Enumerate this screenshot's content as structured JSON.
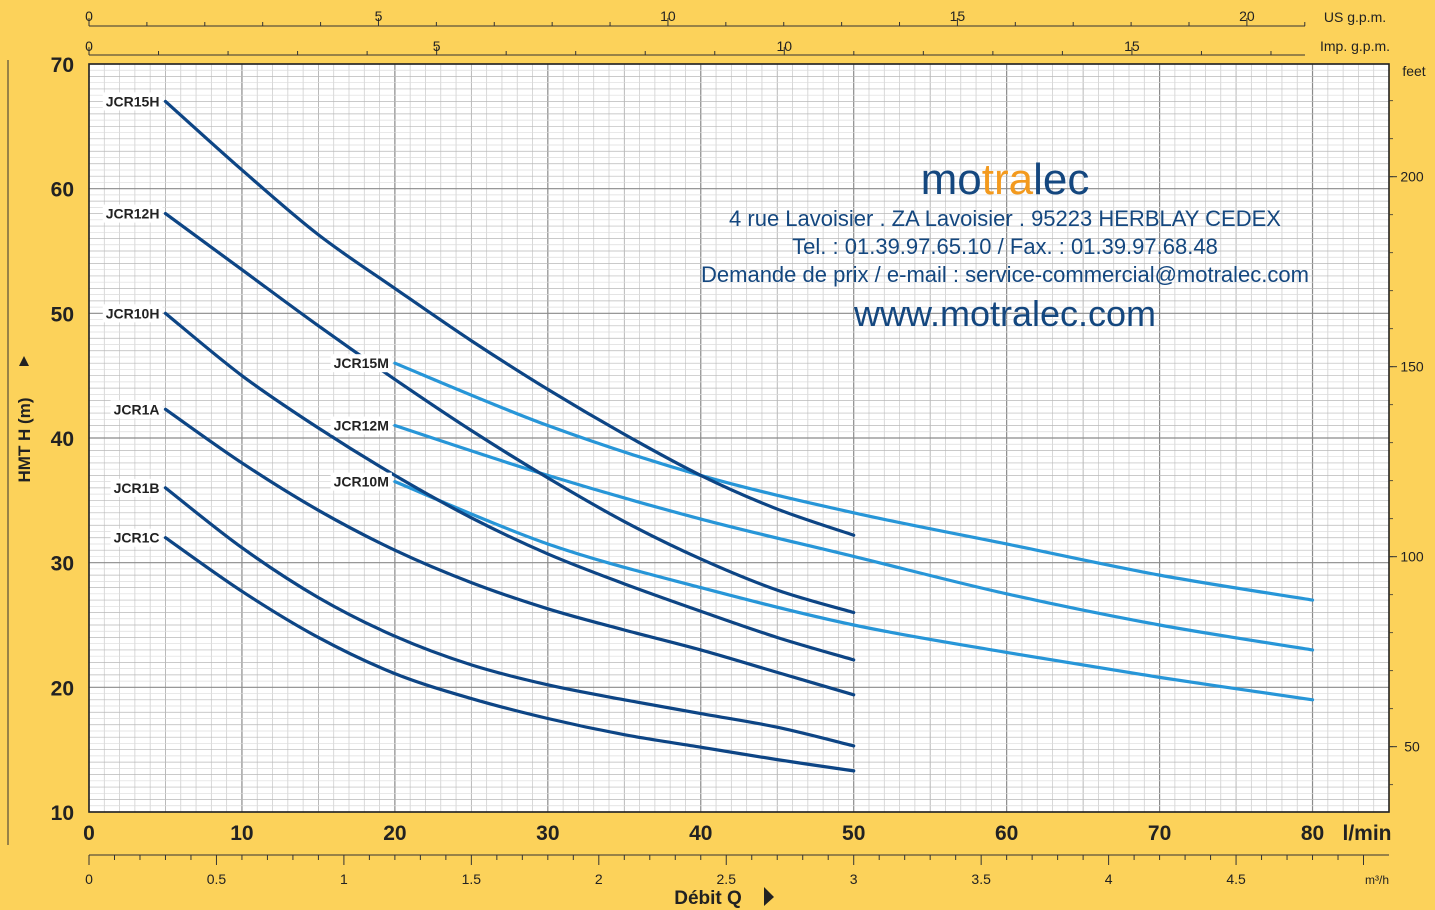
{
  "chart_data": {
    "type": "line",
    "ylabel": "HMT  H  (m)",
    "xlabel": "Débit  Q",
    "x_unit_main": "l/min",
    "ylim": [
      10,
      70
    ],
    "xlim": [
      0,
      85
    ],
    "y_ticks": [
      "70",
      "60",
      "50",
      "40",
      "30",
      "20",
      "10"
    ],
    "x_ticks_lmin": [
      "0",
      "10",
      "20",
      "30",
      "40",
      "50",
      "60",
      "70",
      "80"
    ],
    "x_ticks_m3h": [
      "0",
      "0.5",
      "1",
      "1.5",
      "2",
      "2.5",
      "3",
      "3.5",
      "4",
      "4.5"
    ],
    "x_unit_m3h": "m³/h",
    "x_ticks_usgpm": [
      "0",
      "5",
      "10",
      "15",
      "20"
    ],
    "x_unit_usgpm": "US g.p.m.",
    "x_ticks_impgpm": [
      "0",
      "5",
      "10",
      "15"
    ],
    "x_unit_impgpm": "Imp. g.p.m.",
    "y_ticks_feet": [
      "200",
      "150",
      "100",
      "50"
    ],
    "y_unit_feet": "feet",
    "series": [
      {
        "name": "JCR15H",
        "color": "#0d4585",
        "x": [
          5,
          10,
          15,
          20,
          25,
          30,
          35,
          40,
          45,
          50
        ],
        "y": [
          67,
          61.5,
          56.3,
          52,
          47.8,
          43.9,
          40.3,
          37,
          34.3,
          32.2
        ]
      },
      {
        "name": "JCR12H",
        "color": "#0d4585",
        "x": [
          5,
          10,
          15,
          20,
          25,
          30,
          35,
          40,
          45,
          50
        ],
        "y": [
          58,
          53.5,
          49,
          44.7,
          40.6,
          36.8,
          33.3,
          30.3,
          27.8,
          26
        ]
      },
      {
        "name": "JCR10H",
        "color": "#0d4585",
        "x": [
          5,
          10,
          15,
          20,
          25,
          30,
          35,
          40,
          45,
          50
        ],
        "y": [
          50,
          45,
          40.8,
          37,
          33.6,
          30.7,
          28.3,
          26.1,
          24,
          22.2
        ]
      },
      {
        "name": "JCR1A",
        "color": "#0d4585",
        "x": [
          5,
          10,
          15,
          20,
          25,
          30,
          35,
          40,
          45,
          50
        ],
        "y": [
          42.3,
          38,
          34.2,
          31,
          28.4,
          26.3,
          24.6,
          23,
          21.2,
          19.4
        ]
      },
      {
        "name": "JCR1B",
        "color": "#0d4585",
        "x": [
          5,
          10,
          15,
          20,
          25,
          30,
          35,
          40,
          45,
          50
        ],
        "y": [
          36,
          31.2,
          27.2,
          24.1,
          21.8,
          20.2,
          19,
          17.9,
          16.8,
          15.3
        ]
      },
      {
        "name": "JCR1C",
        "color": "#0d4585",
        "x": [
          5,
          10,
          15,
          20,
          25,
          30,
          35,
          40,
          45,
          50
        ],
        "y": [
          32,
          27.7,
          24,
          21.1,
          19.1,
          17.5,
          16.2,
          15.2,
          14.2,
          13.3
        ]
      },
      {
        "name": "JCR15M",
        "color": "#2796d8",
        "x": [
          20,
          30,
          40,
          50,
          60,
          70,
          80
        ],
        "y": [
          46,
          41,
          37,
          34,
          31.5,
          29,
          27
        ]
      },
      {
        "name": "JCR12M",
        "color": "#2796d8",
        "x": [
          20,
          30,
          40,
          50,
          60,
          70,
          80
        ],
        "y": [
          41,
          37,
          33.5,
          30.5,
          27.5,
          25,
          23
        ]
      },
      {
        "name": "JCR10M",
        "color": "#2796d8",
        "x": [
          20,
          30,
          40,
          50,
          60,
          70,
          80
        ],
        "y": [
          36.5,
          31.5,
          28,
          25,
          22.8,
          20.8,
          19
        ]
      }
    ]
  },
  "brand": {
    "logo_pre": "mo",
    "logo_hl": "tra",
    "logo_post": "lec",
    "address": "4 rue Lavoisier . ZA Lavoisier . 95223 HERBLAY CEDEX",
    "phone": "Tel. : 01.39.97.65.10 / Fax. : 01.39.97.68.48",
    "email": "Demande de prix / e-mail : service-commercial@motralec.com",
    "website": "www.motralec.com"
  }
}
